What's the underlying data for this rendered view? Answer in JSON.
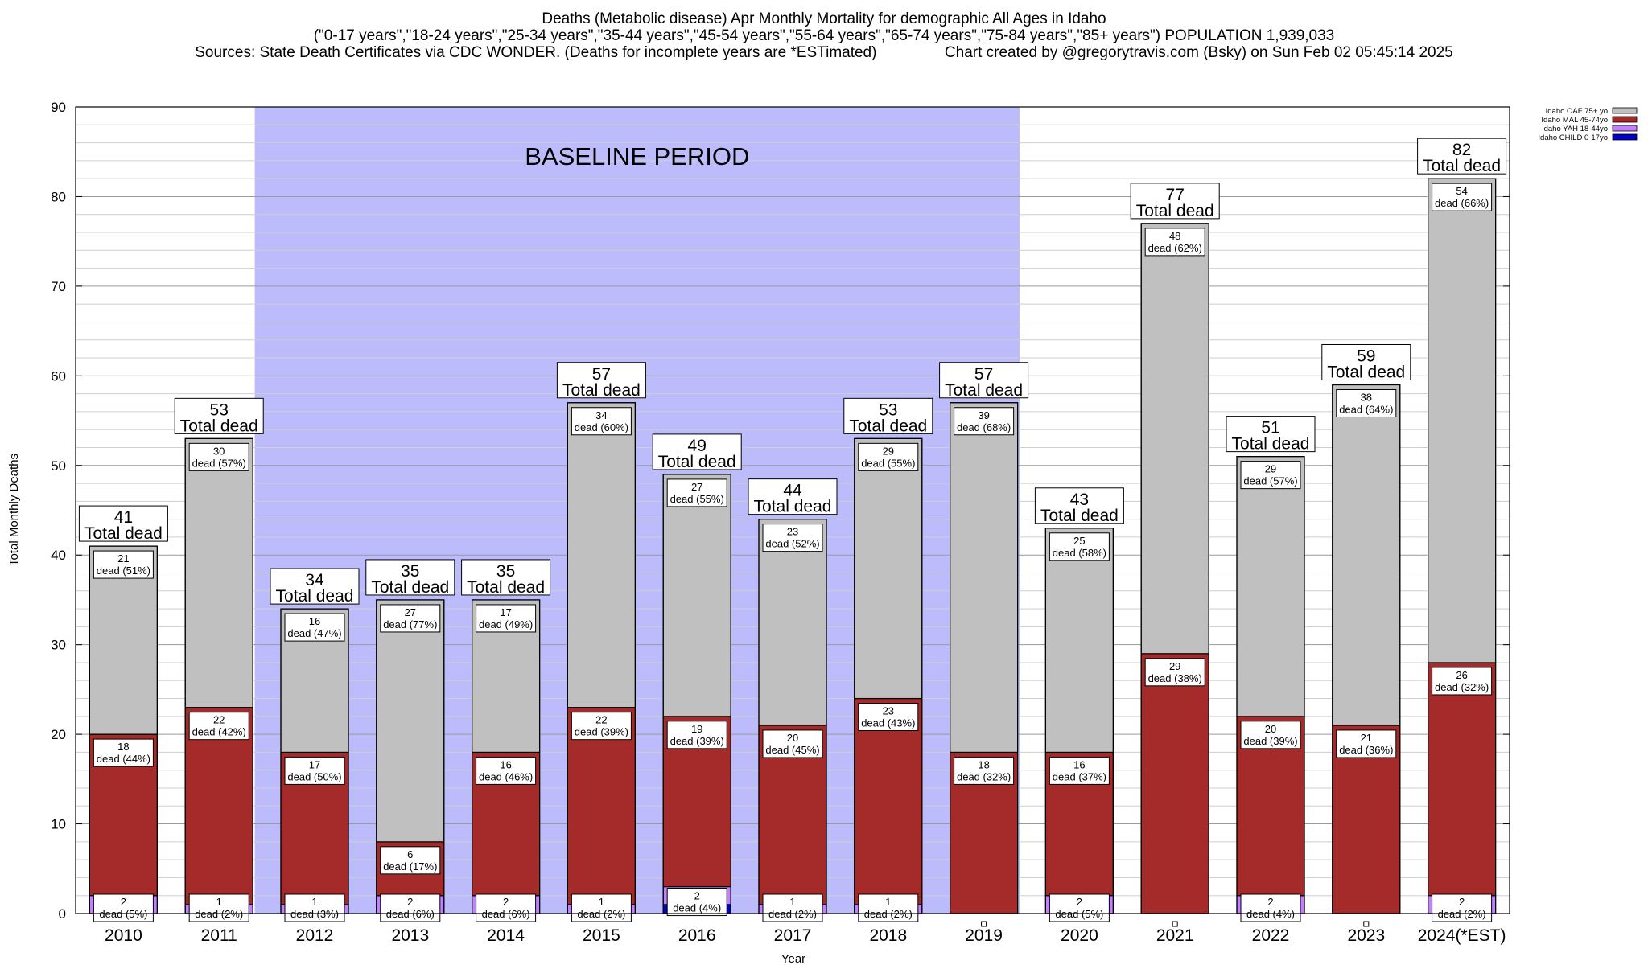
{
  "header": {
    "title": "Deaths (Metabolic disease) Apr Monthly Mortality for demographic All Ages in Idaho",
    "subtitle": "(\"0-17 years\",\"18-24 years\",\"25-34 years\",\"35-44 years\",\"45-54 years\",\"55-64 years\",\"65-74 years\",\"75-84 years\",\"85+ years\") POPULATION 1,939,033",
    "sources": "Sources: State Death Certificates via CDC WONDER. (Deaths for incomplete years are *ESTimated)                Chart created by @gregorytravis.com (Bsky) on Sun Feb 02 05:45:14 2025"
  },
  "chart_data": {
    "type": "bar",
    "stacked": true,
    "xlabel": "Year",
    "ylabel": "Total Monthly Deaths",
    "ylim": [
      0,
      90
    ],
    "yticks": [
      "0",
      "10",
      "20",
      "30",
      "40",
      "50",
      "60",
      "70",
      "80",
      "90"
    ],
    "grid": true,
    "legend_position": "top-right",
    "annotation": "BASELINE PERIOD",
    "baseline_period": [
      "2012",
      "2019"
    ],
    "categories": [
      "2010",
      "2011",
      "2012",
      "2013",
      "2014",
      "2015",
      "2016",
      "2017",
      "2018",
      "2019",
      "2020",
      "2021",
      "2022",
      "2023",
      "2024(*EST)"
    ],
    "series": [
      {
        "name": "Idaho CHILD 0-17yo",
        "color": "#0000c8",
        "values": [
          0,
          0,
          0,
          0,
          0,
          0,
          1,
          0,
          0,
          0,
          0,
          0,
          0,
          0,
          0
        ],
        "labels": [
          "",
          "",
          "",
          "",
          "",
          "",
          "",
          "",
          "",
          "",
          "",
          "",
          "",
          "",
          ""
        ]
      },
      {
        "name": "daho YAH 18-44yo",
        "color": "#c080ff",
        "values": [
          2,
          1,
          1,
          2,
          2,
          1,
          2,
          1,
          1,
          0,
          2,
          0,
          2,
          0,
          2
        ],
        "labels": [
          "dead (5%)",
          "dead (2%)",
          "dead (3%)",
          "dead (6%)",
          "dead (6%)",
          "dead (2%)",
          "dead (4%)",
          "dead (2%)",
          "dead (2%)",
          "",
          "dead (5%)",
          "",
          "dead (4%)",
          "",
          "dead (2%)"
        ]
      },
      {
        "name": "Idaho MAL 45-74yo",
        "color": "#a52a2a",
        "values": [
          18,
          22,
          17,
          6,
          16,
          22,
          19,
          20,
          23,
          18,
          16,
          29,
          20,
          21,
          26
        ],
        "labels": [
          "dead (44%)",
          "dead (42%)",
          "dead (50%)",
          "dead (17%)",
          "dead (46%)",
          "dead (39%)",
          "dead (39%)",
          "dead (45%)",
          "dead (43%)",
          "dead (32%)",
          "dead (37%)",
          "dead (38%)",
          "dead (39%)",
          "dead (36%)",
          "dead (32%)"
        ]
      },
      {
        "name": "Idaho OAF 75+ yo",
        "color": "#c0c0c0",
        "values": [
          21,
          30,
          16,
          27,
          17,
          34,
          27,
          23,
          29,
          39,
          25,
          48,
          29,
          38,
          54
        ],
        "labels": [
          "dead (51%)",
          "dead (57%)",
          "dead (47%)",
          "dead (77%)",
          "dead (49%)",
          "dead (60%)",
          "dead (55%)",
          "dead (52%)",
          "dead (55%)",
          "dead (68%)",
          "dead (58%)",
          "dead (62%)",
          "dead (57%)",
          "dead (64%)",
          "dead (66%)"
        ]
      }
    ],
    "totals": [
      41,
      53,
      34,
      35,
      35,
      57,
      49,
      44,
      53,
      57,
      43,
      77,
      51,
      59,
      82
    ],
    "total_label": "Total dead"
  }
}
